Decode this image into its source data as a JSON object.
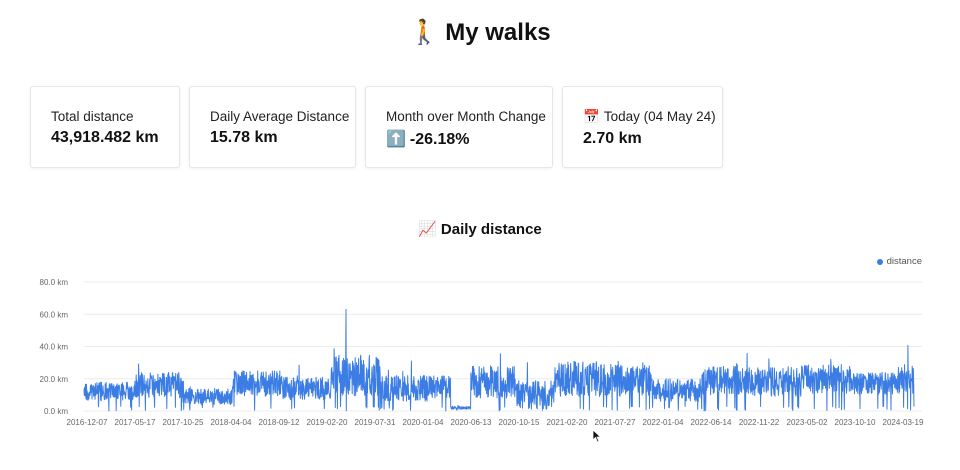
{
  "page": {
    "title": "My walks",
    "title_emoji": "🚶"
  },
  "cards": [
    {
      "label": "Total distance",
      "value": "43,918.482 km",
      "emoji": ""
    },
    {
      "label": "Daily Average Distance",
      "value": "15.78 km",
      "emoji": ""
    },
    {
      "label": "Month over Month Change",
      "value": "-26.18%",
      "emoji": "⬆️"
    },
    {
      "label": "Today (04 May 24)",
      "value": "2.70 km",
      "emoji": "📅"
    }
  ],
  "colors": {
    "series": "#3b7de4",
    "grid": "#ececec"
  },
  "chart_data": {
    "type": "line",
    "title": "Daily distance",
    "title_emoji": "📈",
    "legend": [
      "distance"
    ],
    "legend_position": "top-right",
    "ylim": [
      0,
      80
    ],
    "yticks": [
      0,
      20,
      40,
      60,
      80
    ],
    "ytick_labels": [
      "0.0 km",
      "20.0 km",
      "40.0 km",
      "60.0 km",
      "80.0 km"
    ],
    "x_range": [
      "2016-12-07",
      "2024-05-04"
    ],
    "xtick_labels": [
      "2016-12-07",
      "2017-05-17",
      "2017-10-25",
      "2018-04-04",
      "2018-09-12",
      "2019-02-20",
      "2019-07-31",
      "2020-01-04",
      "2020-06-13",
      "2020-10-15",
      "2021-02-20",
      "2021-07-27",
      "2022-01-04",
      "2022-06-14",
      "2022-11-22",
      "2023-05-02",
      "2023-10-10",
      "2024-03-19"
    ],
    "grid": true,
    "series": [
      {
        "name": "distance",
        "approx_daily_mean_km": 15.78,
        "max_km": 63,
        "segments": [
          {
            "from": "2016-12-07",
            "to": "2017-05-17",
            "mean_km": 12,
            "amplitude_km": 6
          },
          {
            "from": "2017-05-17",
            "to": "2017-10-25",
            "mean_km": 16,
            "amplitude_km": 8
          },
          {
            "from": "2017-10-25",
            "to": "2018-04-04",
            "mean_km": 9,
            "amplitude_km": 5
          },
          {
            "from": "2018-04-04",
            "to": "2018-09-12",
            "mean_km": 17,
            "amplitude_km": 8
          },
          {
            "from": "2018-09-12",
            "to": "2019-02-20",
            "mean_km": 14,
            "amplitude_km": 7
          },
          {
            "from": "2019-02-20",
            "to": "2019-07-31",
            "mean_km": 22,
            "amplitude_km": 13
          },
          {
            "from": "2019-07-31",
            "to": "2020-01-04",
            "mean_km": 14,
            "amplitude_km": 8
          },
          {
            "from": "2020-01-04",
            "to": "2020-03-15",
            "mean_km": 15,
            "amplitude_km": 7
          },
          {
            "from": "2020-03-15",
            "to": "2020-05-20",
            "mean_km": 2,
            "amplitude_km": 1
          },
          {
            "from": "2020-05-20",
            "to": "2020-10-15",
            "mean_km": 18,
            "amplitude_km": 10
          },
          {
            "from": "2020-10-15",
            "to": "2021-02-20",
            "mean_km": 10,
            "amplitude_km": 9
          },
          {
            "from": "2021-02-20",
            "to": "2021-07-27",
            "mean_km": 20,
            "amplitude_km": 11
          },
          {
            "from": "2021-07-27",
            "to": "2022-01-04",
            "mean_km": 19,
            "amplitude_km": 10
          },
          {
            "from": "2022-01-04",
            "to": "2022-06-14",
            "mean_km": 13,
            "amplitude_km": 7
          },
          {
            "from": "2022-06-14",
            "to": "2022-11-22",
            "mean_km": 19,
            "amplitude_km": 9
          },
          {
            "from": "2022-11-22",
            "to": "2023-05-02",
            "mean_km": 18,
            "amplitude_km": 9
          },
          {
            "from": "2023-05-02",
            "to": "2023-10-10",
            "mean_km": 20,
            "amplitude_km": 9
          },
          {
            "from": "2023-10-10",
            "to": "2024-03-19",
            "mean_km": 17,
            "amplitude_km": 7
          },
          {
            "from": "2024-03-19",
            "to": "2024-05-04",
            "mean_km": 20,
            "amplitude_km": 9
          }
        ],
        "last_value_km": 2.7
      }
    ]
  }
}
